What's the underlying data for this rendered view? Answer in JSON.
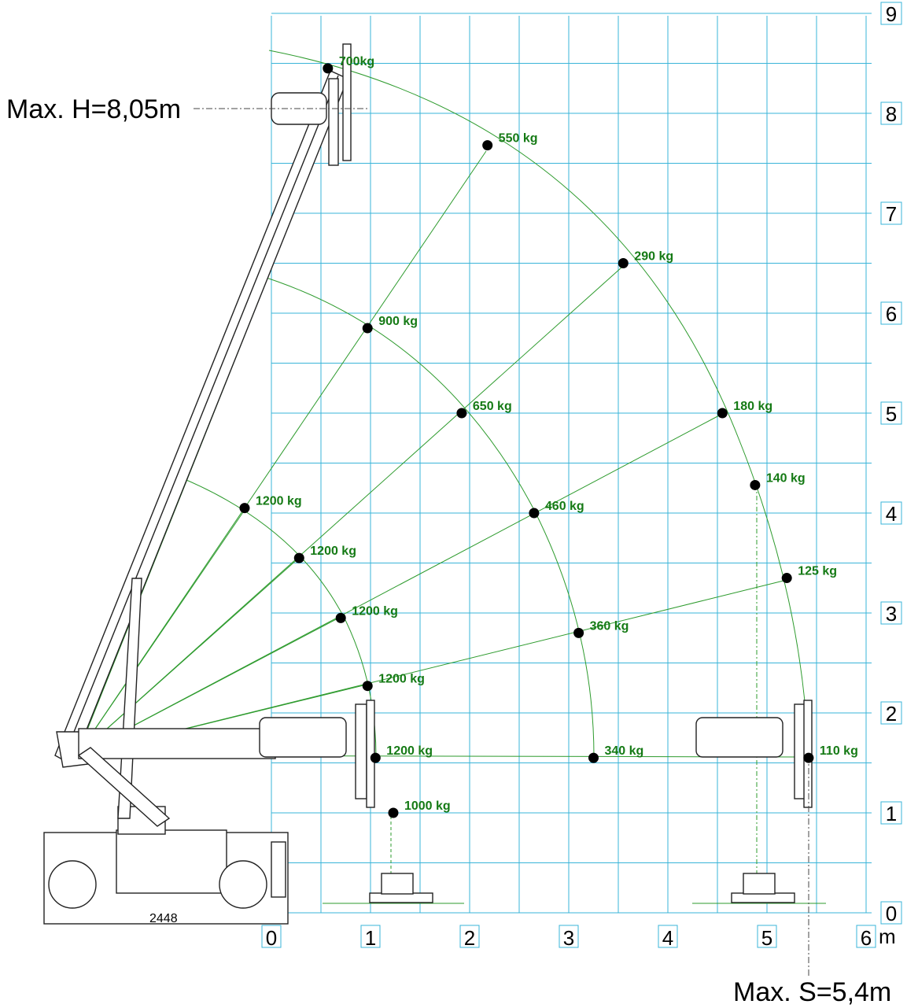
{
  "annotations": {
    "max_height": "Max. H=8,05m",
    "max_reach": "Max. S=5,4m",
    "machine_width": "2448"
  },
  "axes": {
    "x_ticks": [
      "0",
      "1",
      "2",
      "3",
      "4",
      "5",
      "6"
    ],
    "x_unit": "m",
    "y_ticks": [
      "0",
      "1",
      "2",
      "3",
      "4",
      "5",
      "6",
      "7",
      "8",
      "9"
    ]
  },
  "load_points": [
    {
      "label": "700kg",
      "x": 0.57,
      "y": 8.45
    },
    {
      "label": "550 kg",
      "x": 2.18,
      "y": 7.68
    },
    {
      "label": "290 kg",
      "x": 3.55,
      "y": 6.5
    },
    {
      "label": "900 kg",
      "x": 0.97,
      "y": 5.85
    },
    {
      "label": "650 kg",
      "x": 1.92,
      "y": 5.0
    },
    {
      "label": "180 kg",
      "x": 4.55,
      "y": 5.0
    },
    {
      "label": "140 kg",
      "x": 4.88,
      "y": 4.28
    },
    {
      "label": "1200 kg",
      "x": -0.27,
      "y": 4.05
    },
    {
      "label": "460 kg",
      "x": 2.65,
      "y": 4.0
    },
    {
      "label": "1200 kg",
      "x": 0.28,
      "y": 3.55
    },
    {
      "label": "125 kg",
      "x": 5.2,
      "y": 3.35
    },
    {
      "label": "1200 kg",
      "x": 0.7,
      "y": 2.95
    },
    {
      "label": "360 kg",
      "x": 3.1,
      "y": 2.8
    },
    {
      "label": "1200 kg",
      "x": 0.97,
      "y": 2.27
    },
    {
      "label": "1200 kg",
      "x": 1.05,
      "y": 1.55
    },
    {
      "label": "340 kg",
      "x": 3.25,
      "y": 1.55
    },
    {
      "label": "110 kg",
      "x": 5.42,
      "y": 1.55
    },
    {
      "label": "1000 kg",
      "x": 1.23,
      "y": 1.0
    }
  ]
}
